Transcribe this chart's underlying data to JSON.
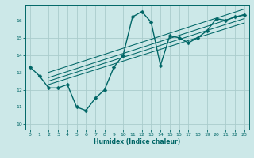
{
  "xlabel": "Humidex (Indice chaleur)",
  "bg_color": "#cce8e8",
  "line_color": "#006666",
  "grid_color": "#aacccc",
  "xlim": [
    -0.5,
    23.5
  ],
  "ylim": [
    9.7,
    16.9
  ],
  "yticks": [
    10,
    11,
    12,
    13,
    14,
    15,
    16
  ],
  "xticks": [
    0,
    1,
    2,
    3,
    4,
    5,
    6,
    7,
    8,
    9,
    10,
    11,
    12,
    13,
    14,
    15,
    16,
    17,
    18,
    19,
    20,
    21,
    22,
    23
  ],
  "curve_x": [
    0,
    1,
    2,
    3,
    4,
    5,
    6,
    7,
    8,
    9,
    10,
    11,
    12,
    13,
    14,
    15,
    16,
    17,
    18,
    19,
    20,
    21,
    22,
    23
  ],
  "curve_y": [
    13.3,
    12.8,
    12.1,
    12.1,
    12.3,
    11.0,
    10.8,
    11.5,
    12.0,
    13.3,
    14.0,
    16.2,
    16.5,
    15.9,
    13.4,
    15.1,
    15.0,
    14.7,
    15.0,
    15.4,
    16.1,
    16.0,
    16.2,
    16.3
  ],
  "linear_lines": [
    {
      "x": [
        2,
        23
      ],
      "y": [
        12.3,
        15.85
      ]
    },
    {
      "x": [
        2,
        23
      ],
      "y": [
        12.5,
        16.1
      ]
    },
    {
      "x": [
        2,
        23
      ],
      "y": [
        12.7,
        16.35
      ]
    },
    {
      "x": [
        2,
        23
      ],
      "y": [
        13.0,
        16.65
      ]
    }
  ],
  "marker": "D",
  "marker_size": 2.5,
  "line_width": 1.0
}
